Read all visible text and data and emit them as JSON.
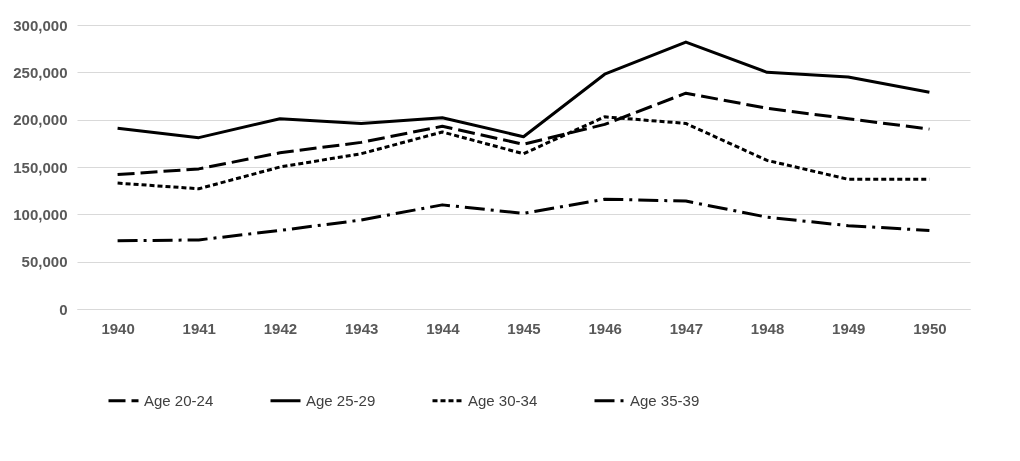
{
  "chart_data": {
    "type": "line",
    "categories": [
      "1940",
      "1941",
      "1942",
      "1943",
      "1944",
      "1945",
      "1946",
      "1947",
      "1948",
      "1949",
      "1950"
    ],
    "series": [
      {
        "name": "Age 20-24",
        "color": "#000000",
        "line_style": "dashed",
        "values": [
          142000,
          148000,
          165000,
          176000,
          193000,
          174000,
          195000,
          228000,
          212000,
          201000,
          190000
        ]
      },
      {
        "name": "Age 25-29",
        "color": "#000000",
        "line_style": "solid",
        "values": [
          191000,
          181000,
          201000,
          196000,
          202000,
          182000,
          248000,
          282000,
          250000,
          245000,
          229000
        ]
      },
      {
        "name": "Age 30-34",
        "color": "#000000",
        "line_style": "dotted",
        "values": [
          133000,
          127000,
          150000,
          164000,
          187000,
          164000,
          203000,
          196000,
          157000,
          137000,
          137000
        ]
      },
      {
        "name": "Age 35-39",
        "color": "#000000",
        "line_style": "dashdot",
        "values": [
          72000,
          73000,
          83000,
          94000,
          110000,
          101000,
          116000,
          114000,
          97000,
          88000,
          83000
        ]
      }
    ],
    "ylim": [
      0,
      300000
    ],
    "yticks": [
      0,
      {
        "value": 50000,
        "label": "50,000"
      },
      {
        "value": 100000,
        "label": "100,000"
      },
      {
        "value": 150000,
        "label": "150,000"
      },
      {
        "value": 200000,
        "label": "200,000"
      },
      {
        "value": 250000,
        "label": "250,000"
      },
      {
        "value": 300000,
        "label": "300,000"
      }
    ],
    "grid": "y",
    "legend": "bottom",
    "marker": "none"
  }
}
